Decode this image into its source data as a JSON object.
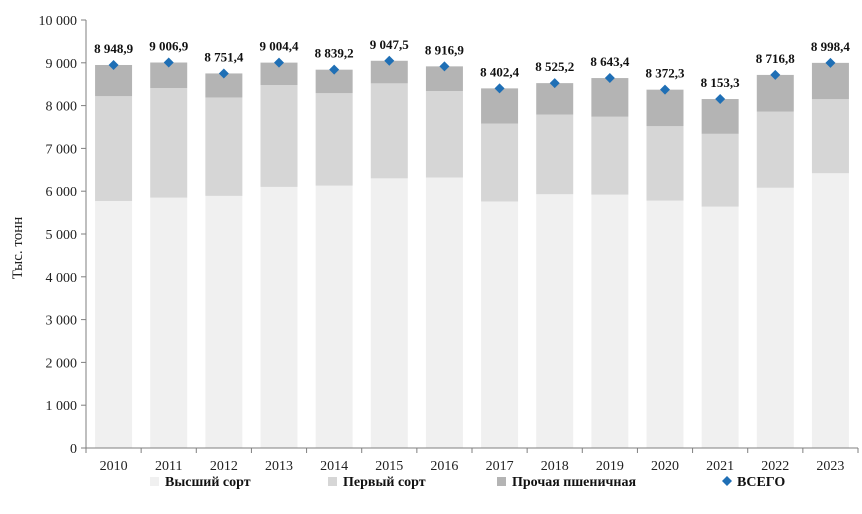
{
  "chart_data": {
    "type": "bar",
    "stacked": true,
    "categories": [
      "2010",
      "2011",
      "2012",
      "2013",
      "2014",
      "2015",
      "2016",
      "2017",
      "2018",
      "2019",
      "2020",
      "2021",
      "2022",
      "2023"
    ],
    "series": [
      {
        "name": "Высший сорт",
        "color": "#f0f0f0",
        "values": [
          5770,
          5850,
          5890,
          6100,
          6130,
          6300,
          6320,
          5760,
          5930,
          5920,
          5780,
          5640,
          6080,
          6420
        ]
      },
      {
        "name": "Первый сорт",
        "color": "#d6d6d6",
        "values": [
          2450,
          2560,
          2300,
          2380,
          2160,
          2220,
          2020,
          1820,
          1860,
          1820,
          1740,
          1700,
          1780,
          1730
        ]
      },
      {
        "name": "Прочая пшеничная",
        "color": "#b4b4b4",
        "values": [
          728.9,
          596.9,
          561.4,
          524.4,
          549.2,
          527.5,
          576.9,
          822.4,
          735.2,
          903.4,
          852.3,
          813.3,
          856.8,
          848.4
        ]
      }
    ],
    "total": {
      "name": "ВСЕГО",
      "color": "#1f6fb5",
      "values": [
        8948.9,
        9006.9,
        8751.4,
        9004.4,
        8839.2,
        9047.5,
        8916.9,
        8402.4,
        8525.2,
        8643.4,
        8372.3,
        8153.3,
        8716.8,
        8998.4
      ],
      "labels": [
        "8 948,9",
        "9 006,9",
        "8 751,4",
        "9 004,4",
        "8 839,2",
        "9 047,5",
        "8 916,9",
        "8 402,4",
        "8 525,2",
        "8 643,4",
        "8 372,3",
        "8 153,3",
        "8 716,8",
        "8 998,4"
      ]
    },
    "ylabel": "Тыс. тонн",
    "ylim": [
      0,
      10000
    ],
    "yticks": [
      0,
      1000,
      2000,
      3000,
      4000,
      5000,
      6000,
      7000,
      8000,
      9000,
      10000
    ],
    "ytick_labels": [
      "0",
      "1 000",
      "2 000",
      "3 000",
      "4 000",
      "5 000",
      "6 000",
      "7 000",
      "8 000",
      "9 000",
      "10 000"
    ],
    "legend_position": "bottom",
    "grid": false
  }
}
